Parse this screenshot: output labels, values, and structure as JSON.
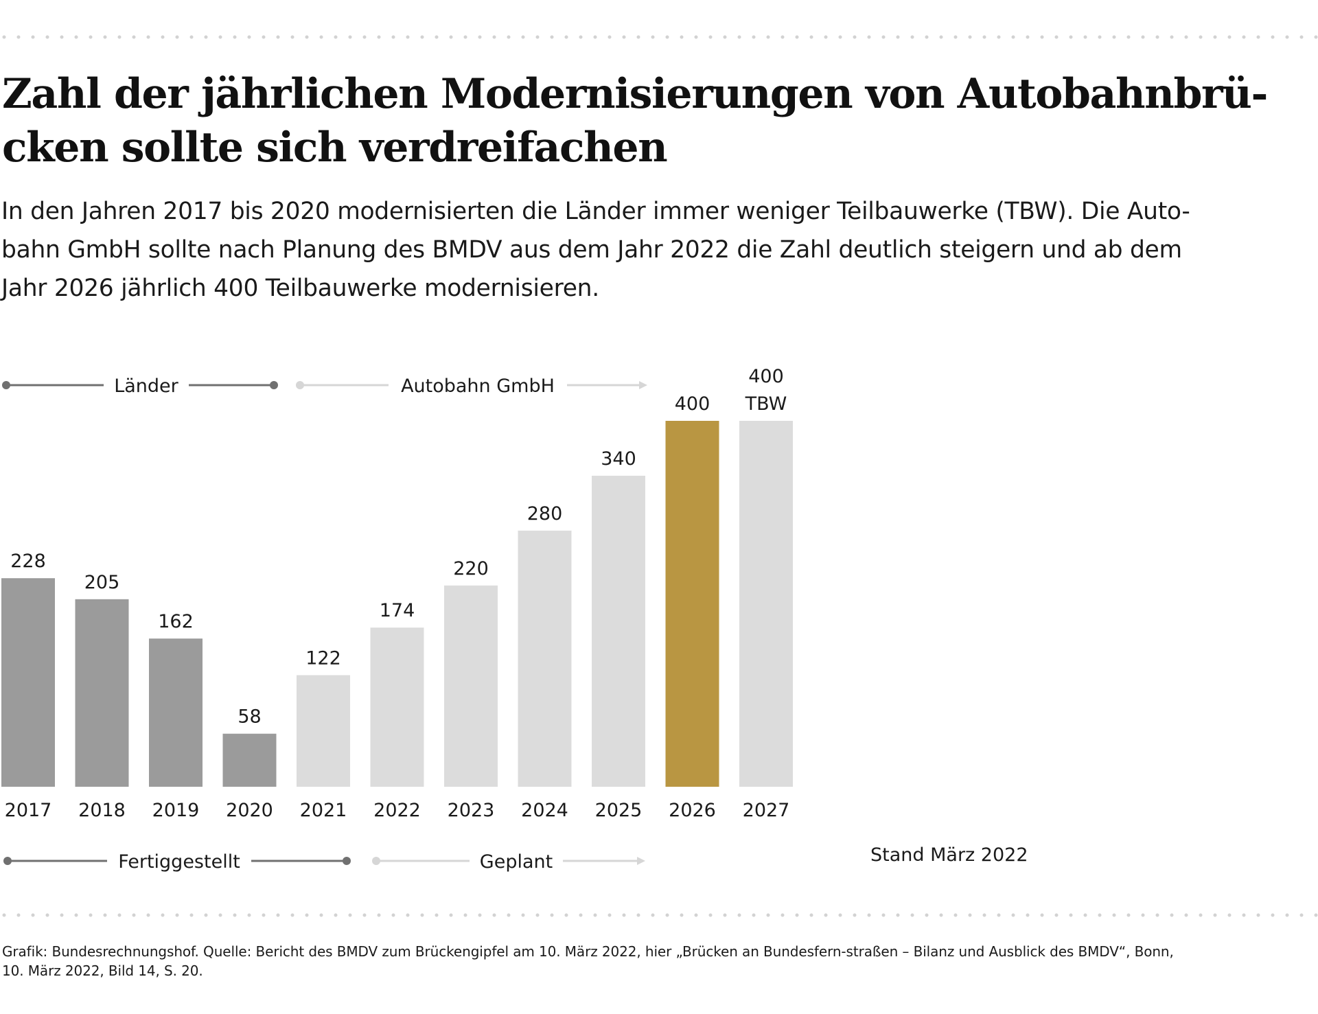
{
  "title_lines": [
    "Zahl der jährlichen Modernisierungen von Autobahnbrü-",
    "cken sollte sich verdreifachen"
  ],
  "subtitle_lines": [
    "In den Jahren 2017 bis 2020 modernisierten die Länder immer weniger Teilbauwerke (TBW). Die Auto-",
    "bahn GmbH sollte nach Planung des BMDV aus dem Jahr 2022 die Zahl deutlich steigern und ab dem",
    "Jahr 2026 jährlich 400 Teilbauwerke modernisieren."
  ],
  "stand": "Stand März 2022",
  "source_lines": [
    "Grafik: Bundesrechnungshof. Quelle: Bericht des BMDV zum Brückengipfel am 10. März 2022, hier „Brücken an Bundesfern-straßen – Bilanz und Ausblick des BMDV“, Bonn,",
    "10. März 2022, Bild 14, S. 20."
  ],
  "colors": {
    "laender": "#9b9b9b",
    "autobahn": "#dcdcdc",
    "highlight": "#b99642",
    "line_dark": "#707070",
    "line_light": "#d6d6d6",
    "dots": "#d2d2d2"
  },
  "chart_data": {
    "type": "bar",
    "categories": [
      "2017",
      "2018",
      "2019",
      "2020",
      "2021",
      "2022",
      "2023",
      "2024",
      "2025",
      "2026",
      "2027"
    ],
    "values": [
      228,
      205,
      162,
      58,
      122,
      174,
      220,
      280,
      340,
      400,
      400
    ],
    "value_labels": [
      "228",
      "205",
      "162",
      "58",
      "122",
      "174",
      "220",
      "280",
      "340",
      "400",
      "400"
    ],
    "unit_label": "TBW",
    "bar_groups": [
      "laender",
      "laender",
      "laender",
      "laender",
      "autobahn",
      "autobahn",
      "autobahn",
      "autobahn",
      "autobahn",
      "highlight",
      "autobahn"
    ],
    "ylim": [
      0,
      400
    ],
    "grid": false,
    "top_brackets": [
      {
        "label": "Länder",
        "from": 0,
        "to": 3,
        "style": "dark"
      },
      {
        "label": "Autobahn GmbH",
        "from": 4,
        "to": 8,
        "style": "light-arrow"
      }
    ],
    "bottom_brackets": [
      {
        "label": "Fertiggestellt",
        "from": 0,
        "to": 4,
        "style": "dark"
      },
      {
        "label": "Geplant",
        "from": 5,
        "to": 8,
        "style": "light-arrow"
      }
    ]
  }
}
